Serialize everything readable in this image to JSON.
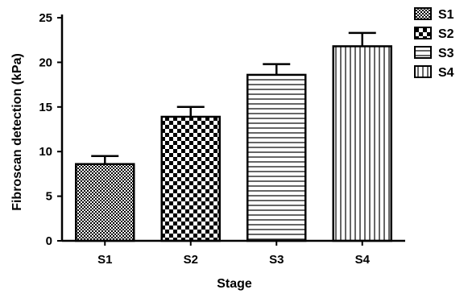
{
  "chart_data": {
    "type": "bar",
    "title": "",
    "xlabel": "Stage",
    "ylabel": "Fibroscan detection (kPa)",
    "categories": [
      "S1",
      "S2",
      "S3",
      "S4"
    ],
    "values": [
      8.6,
      13.9,
      18.6,
      21.8
    ],
    "errors": [
      0.9,
      1.1,
      1.2,
      1.5
    ],
    "ylim": [
      0,
      25
    ],
    "yticks": [
      "0",
      "5",
      "10",
      "15",
      "20",
      "25"
    ],
    "legend": {
      "position": "top-right",
      "entries": [
        "S1",
        "S2",
        "S3",
        "S4"
      ]
    },
    "patterns": [
      "fine-checker",
      "coarse-checker",
      "horizontal-lines",
      "vertical-lines"
    ],
    "grid": false
  }
}
